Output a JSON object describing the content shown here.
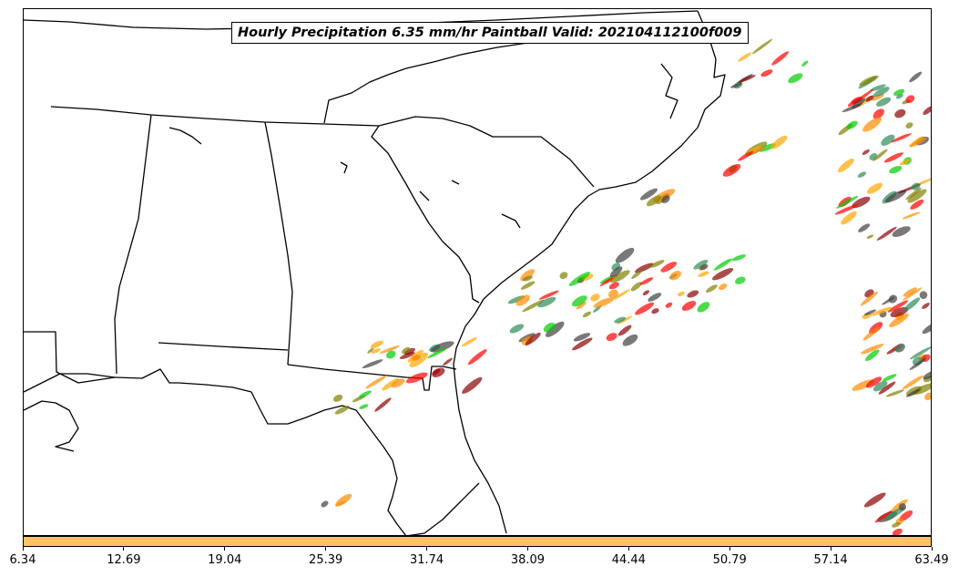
{
  "title": "Hourly Precipitation 6.35 mm/hr Paintball Valid: 202104112100f009",
  "colorbar": {
    "color": "#ffc266",
    "tick_labels": [
      "6.34",
      "12.69",
      "19.04",
      "25.39",
      "31.74",
      "38.09",
      "44.44",
      "50.79",
      "57.14",
      "63.49"
    ]
  },
  "map": {
    "region": "Southeastern United States and western Atlantic",
    "paintball_colors": [
      "#ff0000",
      "#ff8c00",
      "#ffa500",
      "#00cc00",
      "#808000",
      "#8b0000",
      "#404040",
      "#2e8b57"
    ]
  }
}
